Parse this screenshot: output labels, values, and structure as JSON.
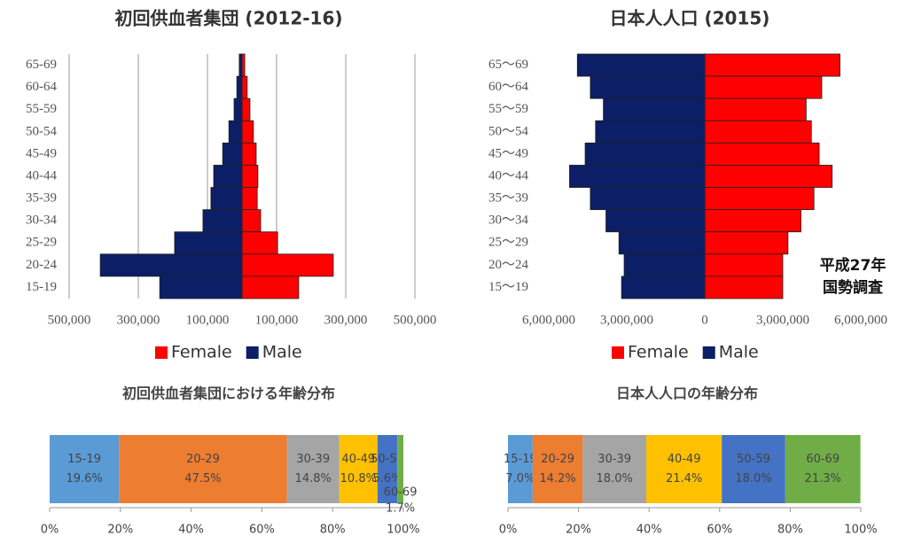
{
  "chart_data": [
    {
      "type": "pyramid",
      "title": "初回供血者集団 (2012-16)",
      "categories": [
        "65-69",
        "60-64",
        "55-59",
        "50-54",
        "45-49",
        "40-44",
        "35-39",
        "30-34",
        "25-29",
        "20-24",
        "15-19"
      ],
      "series": [
        {
          "name": "Female",
          "color": "#ff0000",
          "values": [
            8000,
            15000,
            23000,
            33000,
            41000,
            46000,
            44000,
            54000,
            103000,
            264000,
            164000
          ]
        },
        {
          "name": "Male",
          "color": "#0b1e66",
          "values": [
            8000,
            15000,
            23000,
            38000,
            56000,
            82000,
            90000,
            113000,
            195000,
            410000,
            238000
          ]
        }
      ],
      "xlim": [
        -500000,
        500000
      ],
      "xticks": [
        {
          "value": -500000,
          "label": "500,000"
        },
        {
          "value": -300000,
          "label": "300,000"
        },
        {
          "value": -100000,
          "label": "100,000"
        },
        {
          "value": 100000,
          "label": "100,000"
        },
        {
          "value": 300000,
          "label": "300,000"
        },
        {
          "value": 500000,
          "label": "500,000"
        }
      ],
      "grid": true
    },
    {
      "type": "pyramid",
      "title": "日本人人口 (2015)",
      "categories": [
        "65～69",
        "60～64",
        "55～59",
        "50～54",
        "45～49",
        "40～44",
        "35～39",
        "30～34",
        "25～29",
        "20～24",
        "15～19"
      ],
      "series": [
        {
          "name": "Female",
          "color": "#ff0000",
          "values": [
            5200000,
            4500000,
            3900000,
            4100000,
            4400000,
            4900000,
            4200000,
            3700000,
            3200000,
            3000000,
            3000000
          ]
        },
        {
          "name": "Male",
          "color": "#0b1e66",
          "values": [
            4900000,
            4400000,
            3900000,
            4200000,
            4600000,
            5200000,
            4400000,
            3800000,
            3300000,
            3100000,
            3200000
          ]
        }
      ],
      "xlim": [
        -6000000,
        6000000
      ],
      "xticks": [
        {
          "value": -6000000,
          "label": "6,000,000"
        },
        {
          "value": -3000000,
          "label": "3,000,000"
        },
        0,
        {
          "value": 3000000,
          "label": "3,000,000"
        },
        {
          "value": 6000000,
          "label": "6,000,000"
        }
      ],
      "grid": false,
      "annotations": [
        "平成27年",
        "国勢調査"
      ]
    },
    {
      "type": "stacked100",
      "title": "初回供血者集団における年齢分布",
      "series": [
        {
          "name": "15-19",
          "color": "#5b9bd5",
          "values": [
            19.6
          ],
          "value_labels": [
            "19.6%"
          ]
        },
        {
          "name": "20-29",
          "color": "#ed7d31",
          "values": [
            47.5
          ],
          "value_labels": [
            "47.5%"
          ]
        },
        {
          "name": "30-39",
          "color": "#a5a5a5",
          "values": [
            14.8
          ],
          "value_labels": [
            "14.8%"
          ]
        },
        {
          "name": "40-49",
          "color": "#ffc000",
          "values": [
            10.8
          ],
          "value_labels": [
            "10.8%"
          ]
        },
        {
          "name": "50-59",
          "color": "#4472c4",
          "values": [
            5.6
          ],
          "value_labels": [
            "5.6%"
          ]
        },
        {
          "name": "60-69",
          "color": "#70ad47",
          "values": [
            1.7
          ],
          "value_labels": [
            "1.7%"
          ]
        }
      ],
      "xlim": [
        0,
        100
      ],
      "xticks": [
        {
          "value": 0,
          "label": "0%"
        },
        {
          "value": 20,
          "label": "20%"
        },
        {
          "value": 40,
          "label": "40%"
        },
        {
          "value": 60,
          "label": "60%"
        },
        {
          "value": 80,
          "label": "80%"
        },
        {
          "value": 100,
          "label": "100%"
        }
      ]
    },
    {
      "type": "stacked100",
      "title": "日本人人口の年齢分布",
      "series": [
        {
          "name": "15-19",
          "color": "#5b9bd5",
          "values": [
            7.0
          ],
          "value_labels": [
            "7.0%"
          ]
        },
        {
          "name": "20-29",
          "color": "#ed7d31",
          "values": [
            14.2
          ],
          "value_labels": [
            "14.2%"
          ]
        },
        {
          "name": "30-39",
          "color": "#a5a5a5",
          "values": [
            18.0
          ],
          "value_labels": [
            "18.0%"
          ]
        },
        {
          "name": "40-49",
          "color": "#ffc000",
          "values": [
            21.4
          ],
          "value_labels": [
            "21.4%"
          ]
        },
        {
          "name": "50-59",
          "color": "#4472c4",
          "values": [
            18.0
          ],
          "value_labels": [
            "18.0%"
          ]
        },
        {
          "name": "60-69",
          "color": "#70ad47",
          "values": [
            21.3
          ],
          "value_labels": [
            "21.3%"
          ]
        }
      ],
      "xlim": [
        0,
        100
      ],
      "xticks": [
        {
          "value": 0,
          "label": "0%"
        },
        {
          "value": 20,
          "label": "20%"
        },
        {
          "value": 40,
          "label": "40%"
        },
        {
          "value": 60,
          "label": "60%"
        },
        {
          "value": 80,
          "label": "80%"
        },
        {
          "value": 100,
          "label": "100%"
        }
      ]
    }
  ]
}
